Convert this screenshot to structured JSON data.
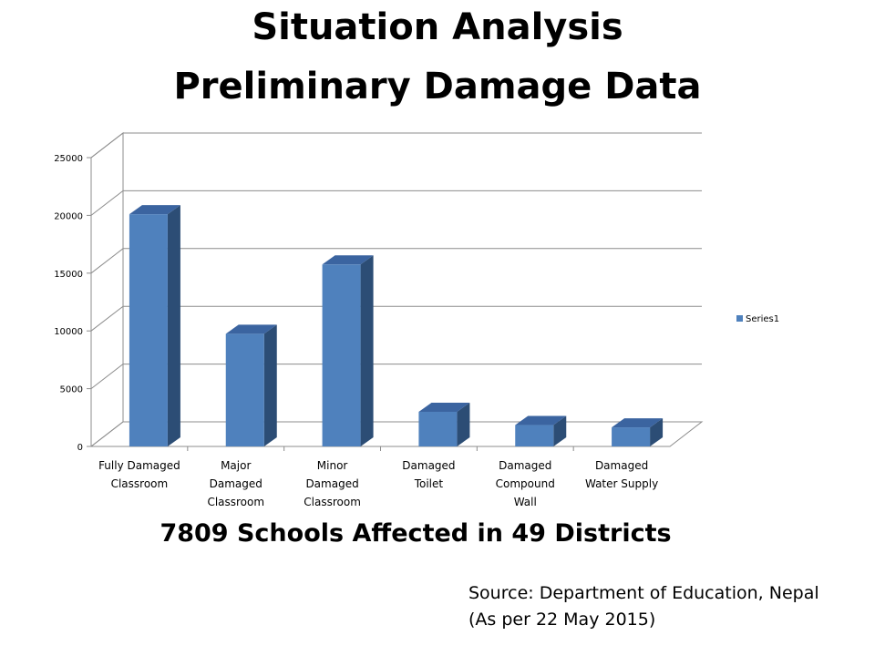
{
  "slide": {
    "title_line1": "Situation Analysis",
    "title_line2": "Preliminary  Damage Data",
    "summary": "7809 Schools Affected in 49 Districts",
    "source_line1": "Source: Department of Education, Nepal",
    "source_line2": "(As per 22 May 2015)"
  },
  "chart_data": {
    "type": "bar",
    "style": "3d-column",
    "categories": [
      [
        "Fully Damaged",
        "Classroom"
      ],
      [
        "Major",
        "Damaged",
        "Classroom"
      ],
      [
        "Minor",
        "Damaged",
        "Classroom"
      ],
      [
        "Damaged",
        "Toilet"
      ],
      [
        "Damaged",
        "Compound",
        "Wall"
      ],
      [
        "Damaged",
        "Water Supply"
      ]
    ],
    "series": [
      {
        "name": "Series1",
        "color": "#4F81BD",
        "values": [
          20100,
          9750,
          15750,
          3000,
          1850,
          1650
        ]
      }
    ],
    "ylim": [
      0,
      25000
    ],
    "yticks": [
      "0",
      "5000",
      "10000",
      "15000",
      "20000",
      "25000"
    ],
    "grid": true,
    "legend": "right"
  }
}
